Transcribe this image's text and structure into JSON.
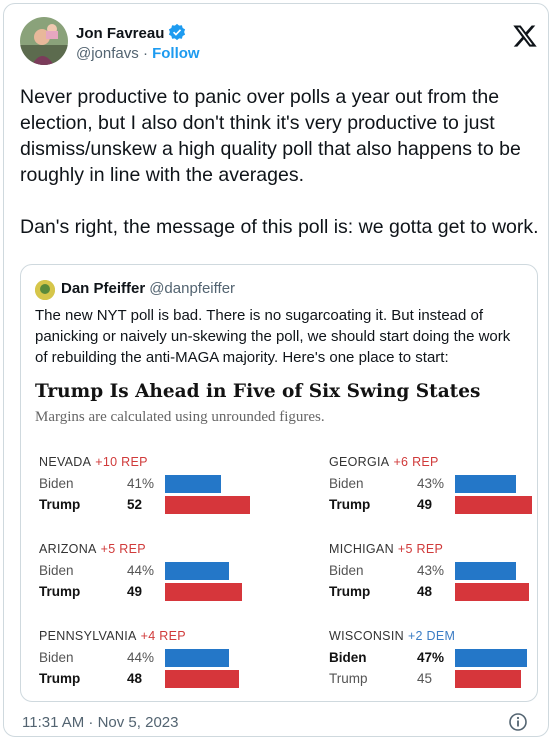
{
  "author": {
    "name": "Jon Favreau",
    "handle": "@jonfavs",
    "separator": "·",
    "follow_label": "Follow"
  },
  "tweet": {
    "paragraphs": [
      "Never productive to panic over polls a year out from the election, but I also don't think it's very productive to just dismiss/unskew a high quality poll that also happens to be roughly in line with the averages.",
      "Dan's right, the message of this poll is: we gotta get to work."
    ],
    "timestamp": "11:31 AM · Nov 5, 2023"
  },
  "quote": {
    "name": "Dan Pfeiffer",
    "handle": "@danpfeiffer",
    "text": "The new NYT poll is bad. There is no sugarcoating it.  But instead of panicking or naively un-skewing the poll, we should start doing the work of rebuilding the anti-MAGA majority. Here's one place to start:"
  },
  "chart_data": {
    "type": "bar",
    "title": "Trump Is Ahead in Five of Six Swing States",
    "subtitle": "Margins are calculated using unrounded figures.",
    "states": [
      {
        "name": "NEVADA",
        "margin": "+10 REP",
        "lean": "rep",
        "rows": [
          {
            "cand": "Biden",
            "label": "41%",
            "value": 41,
            "party": "dem",
            "bold": false
          },
          {
            "cand": "Trump",
            "label": "52",
            "value": 52,
            "party": "rep",
            "bold": true
          }
        ]
      },
      {
        "name": "GEORGIA",
        "margin": "+6 REP",
        "lean": "rep",
        "rows": [
          {
            "cand": "Biden",
            "label": "43%",
            "value": 43,
            "party": "dem",
            "bold": false
          },
          {
            "cand": "Trump",
            "label": "49",
            "value": 49,
            "party": "rep",
            "bold": true
          }
        ]
      },
      {
        "name": "ARIZONA",
        "margin": "+5 REP",
        "lean": "rep",
        "rows": [
          {
            "cand": "Biden",
            "label": "44%",
            "value": 44,
            "party": "dem",
            "bold": false
          },
          {
            "cand": "Trump",
            "label": "49",
            "value": 49,
            "party": "rep",
            "bold": true
          }
        ]
      },
      {
        "name": "MICHIGAN",
        "margin": "+5 REP",
        "lean": "rep",
        "rows": [
          {
            "cand": "Biden",
            "label": "43%",
            "value": 43,
            "party": "dem",
            "bold": false
          },
          {
            "cand": "Trump",
            "label": "48",
            "value": 48,
            "party": "rep",
            "bold": true
          }
        ]
      },
      {
        "name": "PENNSYLVANIA",
        "margin": "+4 REP",
        "lean": "rep",
        "rows": [
          {
            "cand": "Biden",
            "label": "44%",
            "value": 44,
            "party": "dem",
            "bold": false
          },
          {
            "cand": "Trump",
            "label": "48",
            "value": 48,
            "party": "rep",
            "bold": true
          }
        ]
      },
      {
        "name": "WISCONSIN",
        "margin": "+2 DEM",
        "lean": "dem",
        "rows": [
          {
            "cand": "Biden",
            "label": "47%",
            "value": 47,
            "party": "dem",
            "bold": true
          },
          {
            "cand": "Trump",
            "label": "45",
            "value": 45,
            "party": "rep",
            "bold": false
          }
        ]
      }
    ]
  },
  "colors": {
    "dem": "#2477c8",
    "rep": "#d6363b",
    "follow": "#1d9bf0"
  },
  "icons": {
    "verified": "verified-badge-icon",
    "x_logo": "x-logo-icon",
    "info": "info-icon"
  }
}
